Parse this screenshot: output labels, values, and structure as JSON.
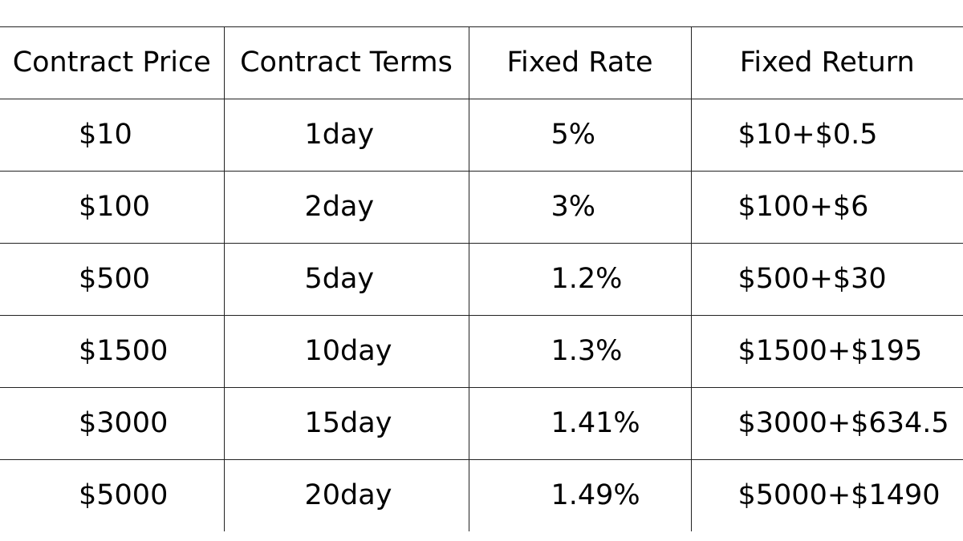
{
  "table": {
    "headers": [
      "Contract Price",
      "Contract Terms",
      "Fixed Rate",
      "Fixed Return"
    ],
    "rows": [
      [
        "$10",
        "1day",
        "5%",
        "$10+$0.5"
      ],
      [
        "$100",
        "2day",
        "3%",
        "$100+$6"
      ],
      [
        "$500",
        "5day",
        "1.2%",
        "$500+$30"
      ],
      [
        "$1500",
        "10day",
        "1.3%",
        "$1500+$195"
      ],
      [
        "$3000",
        "15day",
        "1.41%",
        "$3000+$634.5"
      ],
      [
        "$5000",
        "20day",
        "1.49%",
        "$5000+$1490"
      ]
    ]
  }
}
